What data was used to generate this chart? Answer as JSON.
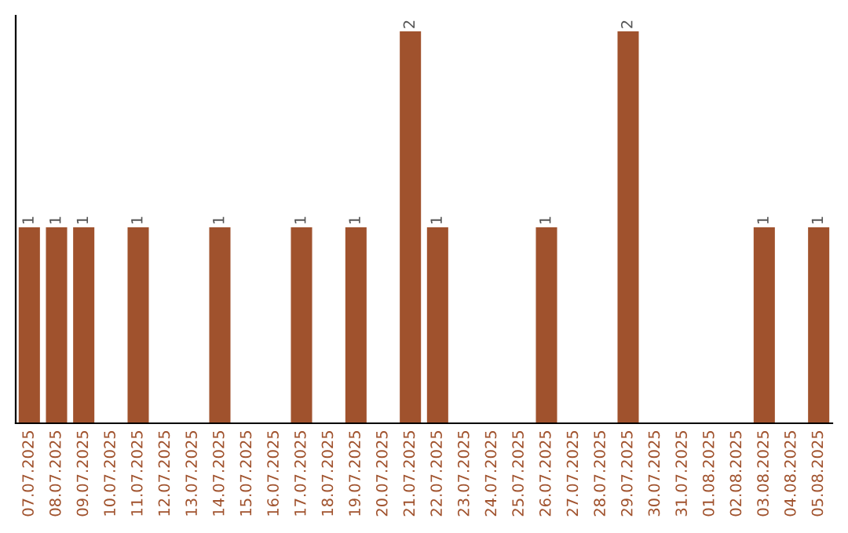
{
  "chart_data": {
    "type": "bar",
    "categories": [
      "07.07.2025",
      "08.07.2025",
      "09.07.2025",
      "10.07.2025",
      "11.07.2025",
      "12.07.2025",
      "13.07.2025",
      "14.07.2025",
      "15.07.2025",
      "16.07.2025",
      "17.07.2025",
      "18.07.2025",
      "19.07.2025",
      "20.07.2025",
      "21.07.2025",
      "22.07.2025",
      "23.07.2025",
      "24.07.2025",
      "25.07.2025",
      "26.07.2025",
      "27.07.2025",
      "28.07.2025",
      "29.07.2025",
      "30.07.2025",
      "31.07.2025",
      "01.08.2025",
      "02.08.2025",
      "03.08.2025",
      "04.08.2025",
      "05.08.2025"
    ],
    "values": [
      1,
      1,
      1,
      0,
      1,
      0,
      0,
      1,
      0,
      0,
      1,
      0,
      1,
      0,
      2,
      1,
      0,
      0,
      0,
      1,
      0,
      0,
      2,
      0,
      0,
      0,
      0,
      1,
      0,
      1
    ],
    "value_labels": [
      "1",
      "1",
      "1",
      null,
      "1",
      null,
      null,
      "1",
      null,
      null,
      "1",
      null,
      "1",
      null,
      "2",
      "1",
      null,
      null,
      null,
      "1",
      null,
      null,
      "2",
      null,
      null,
      null,
      null,
      "1",
      null,
      "1"
    ],
    "color": "#a0522d",
    "ylim": [
      0,
      2.08
    ],
    "tick_labels": "x",
    "grid": false,
    "legend": false
  }
}
